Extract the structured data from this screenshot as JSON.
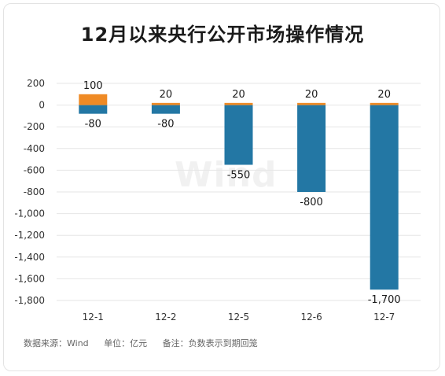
{
  "title": "12月以来央行公开市场操作情况",
  "footer": {
    "source": "数据来源：Wind",
    "unit": "单位：亿元",
    "note": "备注：负数表示到期回笼"
  },
  "watermark": "Wind",
  "colors": {
    "positive": "#ef8a25",
    "negative": "#2377a4",
    "grid": "#e6e6e6",
    "axis_text": "#333333"
  },
  "chart_data": {
    "type": "bar",
    "categories": [
      "12-1",
      "12-2",
      "12-5",
      "12-6",
      "12-7"
    ],
    "series": [
      {
        "values": [
          100,
          20,
          20,
          20,
          20
        ]
      },
      {
        "values": [
          -80,
          -80,
          -550,
          -800,
          -1700
        ]
      }
    ],
    "ylim": [
      -1800,
      200
    ],
    "yticks": [
      200,
      0,
      -200,
      -400,
      -600,
      -800,
      -1000,
      -1200,
      -1400,
      -1600,
      -1800
    ],
    "ytick_labels": [
      "200",
      "0",
      "-200",
      "-400",
      "-600",
      "-800",
      "-1,000",
      "-1,200",
      "-1,400",
      "-1,600",
      "-1,800"
    ],
    "positive_labels": [
      "100",
      "20",
      "20",
      "20",
      "20"
    ],
    "negative_labels": [
      "-80",
      "-80",
      "-550",
      "-800",
      "-1,700"
    ],
    "stacked": true,
    "grid": true,
    "legend": "none"
  }
}
